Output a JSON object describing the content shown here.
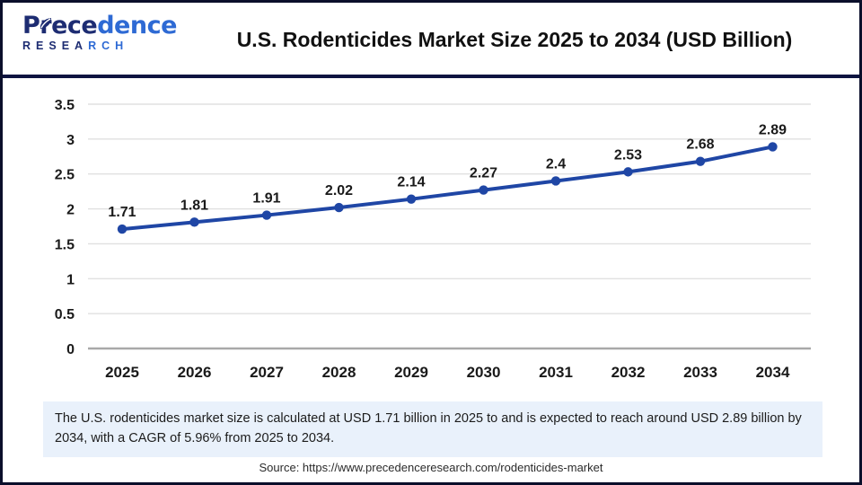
{
  "header": {
    "logo": {
      "word_dark": "Prece",
      "word_light": "dence",
      "sub_dark": "RESEA",
      "sub_light": "RCH"
    },
    "title": "U.S. Rodenticides Market Size 2025 to 2034 (USD Billion)"
  },
  "chart_data": {
    "type": "line",
    "title": "U.S. Rodenticides Market Size 2025 to 2034 (USD Billion)",
    "categories": [
      "2025",
      "2026",
      "2027",
      "2028",
      "2029",
      "2030",
      "2031",
      "2032",
      "2033",
      "2034"
    ],
    "values": [
      1.71,
      1.81,
      1.91,
      2.02,
      2.14,
      2.27,
      2.4,
      2.53,
      2.68,
      2.89
    ],
    "point_labels": [
      "1.71",
      "1.81",
      "1.91",
      "2.02",
      "2.14",
      "2.27",
      "2.4",
      "2.53",
      "2.68",
      "2.89"
    ],
    "xlabel": "",
    "ylabel": "",
    "ylim": [
      0,
      3.5
    ],
    "ytick_values": [
      0,
      0.5,
      1,
      1.5,
      2,
      2.5,
      3,
      3.5
    ],
    "ytick_labels": [
      "0",
      "0.5",
      "1",
      "1.5",
      "2",
      "2.5",
      "3",
      "3.5"
    ],
    "grid": true,
    "legend": "none",
    "line_color": "#1f46a5",
    "grid_color": "#e0e0e0",
    "axis_color": "#a9a9a9",
    "label_color": "#1a1a1a"
  },
  "footer": {
    "note": "The U.S. rodenticides market size is calculated at USD 1.71 billion in 2025 to and is expected to reach around USD 2.89 billion by 2034, with a CAGR of 5.96% from 2025 to 2034.",
    "source": "Source: https://www.precedenceresearch.com/rodenticides-market"
  }
}
